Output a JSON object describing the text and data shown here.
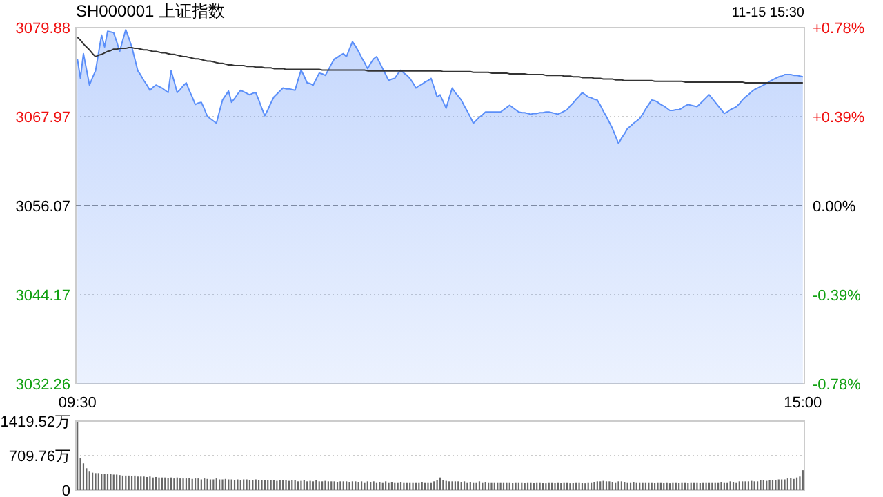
{
  "chart_data": [
    {
      "type": "area",
      "title": "SH000001 上证指数",
      "annotations": [
        "11-15 15:30"
      ],
      "categories": [
        "09:30",
        null,
        null,
        null,
        null,
        null,
        null,
        null,
        null,
        null,
        null,
        null,
        null,
        null,
        null,
        null,
        null,
        null,
        null,
        null,
        null,
        null,
        null,
        null,
        null,
        null,
        null,
        null,
        null,
        null,
        null,
        null,
        null,
        null,
        null,
        null,
        null,
        null,
        null,
        null,
        null,
        null,
        null,
        null,
        null,
        null,
        null,
        null,
        null,
        null,
        null,
        null,
        null,
        null,
        null,
        null,
        null,
        null,
        null,
        null,
        null,
        null,
        null,
        null,
        null,
        null,
        null,
        null,
        null,
        null,
        null,
        null,
        null,
        null,
        null,
        null,
        null,
        null,
        null,
        null,
        null,
        null,
        null,
        null,
        null,
        null,
        null,
        null,
        null,
        null,
        null,
        null,
        null,
        null,
        null,
        null,
        null,
        null,
        null,
        null,
        null,
        null,
        null,
        null,
        null,
        null,
        null,
        null,
        null,
        null,
        null,
        null,
        null,
        null,
        null,
        null,
        null,
        null,
        null,
        null,
        null,
        null,
        null,
        null,
        null,
        null,
        null,
        null,
        null,
        null,
        null,
        null,
        null,
        null,
        null,
        null,
        null,
        null,
        null,
        null,
        null,
        null,
        null,
        null,
        null,
        null,
        null,
        null,
        null,
        null,
        null,
        null,
        null,
        null,
        null,
        null,
        null,
        null,
        null,
        null,
        null,
        null,
        null,
        null,
        null,
        null,
        null,
        null,
        null,
        null,
        null,
        null,
        null,
        null,
        null,
        null,
        null,
        null,
        null,
        null,
        null,
        null,
        null,
        null,
        null,
        null,
        null,
        null,
        null,
        null,
        null,
        null,
        null,
        null,
        null,
        null,
        null,
        null,
        null,
        null,
        null,
        null,
        null,
        null,
        null,
        null,
        null,
        null,
        null,
        null,
        null,
        null,
        null,
        null,
        null,
        null,
        null,
        null,
        null,
        null,
        null,
        null,
        null,
        null,
        null,
        null,
        null,
        null,
        null,
        null,
        null,
        null,
        null,
        null,
        null,
        null,
        null,
        null,
        null,
        null,
        "15:00"
      ],
      "ylim": [
        3032.26,
        3079.88
      ],
      "yticks": [
        3032.26,
        3044.17,
        3056.07,
        3067.97,
        3079.88
      ],
      "y2lim": [
        -0.78,
        0.78
      ],
      "y2ticks": [
        {
          "value": -0.78,
          "label": "-0.78%"
        },
        {
          "value": -0.39,
          "label": "-0.39%"
        },
        {
          "value": 0,
          "label": "0.00%"
        },
        {
          "value": 0.39,
          "label": "+0.39%"
        },
        {
          "value": 0.78,
          "label": "+0.78%"
        }
      ],
      "grid": "y",
      "ref_lines": [
        {
          "axis": "y",
          "value": 3056.07,
          "color": "#888888",
          "line_style": "dashed"
        }
      ],
      "series": [
        {
          "color": "#5b8ff9",
          "values": [
            3075.7,
            3073.1,
            3076.4,
            3074.3,
            3072.2,
            3073.2,
            3074.1,
            3076.5,
            3078.9,
            3077.3,
            3079.4,
            3079.3,
            3079.2,
            3078.0,
            3076.7,
            3078.2,
            3079.6,
            3078.5,
            3077.3,
            3075.7,
            3074.1,
            3073.5,
            3072.8,
            3072.2,
            3071.5,
            3071.9,
            3072.2,
            3072.0,
            3071.8,
            3071.5,
            3071.2,
            3074.1,
            3072.7,
            3071.2,
            3071.6,
            3072.1,
            3072.5,
            3071.5,
            3070.6,
            3069.6,
            3069.8,
            3069.9,
            3069.0,
            3068.0,
            3067.7,
            3067.4,
            3067.1,
            3068.7,
            3070.2,
            3070.8,
            3071.4,
            3069.9,
            3070.4,
            3071.0,
            3071.5,
            3071.3,
            3071.1,
            3070.9,
            3071.1,
            3071.2,
            3070.2,
            3069.1,
            3068.1,
            3068.9,
            3069.8,
            3070.6,
            3071.0,
            3071.4,
            3071.8,
            3071.7,
            3071.7,
            3071.6,
            3071.5,
            3072.9,
            3074.2,
            3073.4,
            3072.5,
            3072.4,
            3072.2,
            3073.0,
            3073.8,
            3073.7,
            3073.5,
            3074.2,
            3075.0,
            3075.7,
            3075.9,
            3076.2,
            3076.4,
            3076.0,
            3077.0,
            3078.0,
            3077.4,
            3076.7,
            3075.9,
            3075.2,
            3074.4,
            3075.1,
            3075.7,
            3076.0,
            3075.2,
            3074.4,
            3073.6,
            3072.8,
            3073.0,
            3073.1,
            3073.7,
            3074.2,
            3073.8,
            3073.5,
            3073.1,
            3072.5,
            3071.8,
            3072.1,
            3072.3,
            3072.6,
            3072.8,
            3073.1,
            3071.9,
            3070.6,
            3070.9,
            3070.0,
            3069.1,
            3070.5,
            3071.8,
            3071.2,
            3070.7,
            3070.2,
            3069.4,
            3068.7,
            3067.9,
            3067.1,
            3067.5,
            3067.9,
            3068.2,
            3068.6,
            3068.6,
            3068.6,
            3068.6,
            3068.6,
            3068.6,
            3068.9,
            3069.2,
            3069.5,
            3069.2,
            3068.9,
            3068.6,
            3068.5,
            3068.5,
            3068.4,
            3068.3,
            3068.4,
            3068.4,
            3068.5,
            3068.5,
            3068.6,
            3068.6,
            3068.5,
            3068.4,
            3068.3,
            3068.5,
            3068.7,
            3068.9,
            3069.4,
            3069.8,
            3070.3,
            3070.7,
            3071.2,
            3070.9,
            3070.6,
            3070.5,
            3070.3,
            3070.2,
            3069.5,
            3068.7,
            3068.0,
            3067.2,
            3066.4,
            3065.4,
            3064.4,
            3065.1,
            3065.7,
            3066.4,
            3066.7,
            3067.1,
            3067.4,
            3067.7,
            3068.3,
            3069.0,
            3069.6,
            3070.2,
            3070.1,
            3069.9,
            3069.6,
            3069.4,
            3069.1,
            3068.8,
            3068.8,
            3068.9,
            3068.9,
            3069.1,
            3069.4,
            3069.6,
            3069.5,
            3069.4,
            3069.3,
            3069.7,
            3070.1,
            3070.5,
            3070.9,
            3070.4,
            3069.9,
            3069.4,
            3068.9,
            3068.4,
            3068.6,
            3068.9,
            3069.1,
            3069.3,
            3069.7,
            3070.2,
            3070.6,
            3070.9,
            3071.3,
            3071.6,
            3071.8,
            3072.0,
            3072.2,
            3072.4,
            3072.7,
            3072.9,
            3073.1,
            3073.3,
            3073.4,
            3073.6,
            3073.6,
            3073.6,
            3073.5,
            3073.5,
            3073.4,
            3073.3
          ]
        },
        {
          "type": "line",
          "color": "#333333",
          "values": [
            3078.6,
            3078.2,
            3077.7,
            3077.3,
            3076.9,
            3076.4,
            3076.0,
            3076.2,
            3076.3,
            3076.5,
            3076.7,
            3076.8,
            3077.0,
            3077.0,
            3077.1,
            3077.1,
            3077.1,
            3077.2,
            3077.2,
            3077.1,
            3077.1,
            3077.0,
            3076.9,
            3076.9,
            3076.8,
            3076.7,
            3076.7,
            3076.6,
            3076.5,
            3076.5,
            3076.4,
            3076.3,
            3076.3,
            3076.2,
            3076.1,
            3076.0,
            3076.0,
            3075.9,
            3075.8,
            3075.7,
            3075.7,
            3075.6,
            3075.5,
            3075.4,
            3075.4,
            3075.3,
            3075.2,
            3075.1,
            3075.1,
            3075.0,
            3074.9,
            3074.9,
            3074.8,
            3074.8,
            3074.8,
            3074.8,
            3074.7,
            3074.7,
            3074.7,
            3074.6,
            3074.6,
            3074.6,
            3074.5,
            3074.5,
            3074.5,
            3074.4,
            3074.4,
            3074.4,
            3074.4,
            3074.3,
            3074.3,
            3074.3,
            3074.3,
            3074.3,
            3074.3,
            3074.3,
            3074.3,
            3074.3,
            3074.3,
            3074.3,
            3074.3,
            3074.2,
            3074.2,
            3074.2,
            3074.2,
            3074.2,
            3074.2,
            3074.2,
            3074.2,
            3074.2,
            3074.2,
            3074.2,
            3074.2,
            3074.2,
            3074.2,
            3074.2,
            3074.1,
            3074.1,
            3074.1,
            3074.1,
            3074.1,
            3074.1,
            3074.1,
            3074.1,
            3074.1,
            3074.1,
            3074.1,
            3074.1,
            3074.1,
            3074.1,
            3074.1,
            3074.1,
            3074.1,
            3074.1,
            3074.1,
            3074.1,
            3074.1,
            3074.1,
            3074.1,
            3074.1,
            3074.1,
            3074.0,
            3074.0,
            3074.0,
            3074.0,
            3074.0,
            3074.0,
            3074.0,
            3074.0,
            3074.0,
            3074.0,
            3073.9,
            3073.9,
            3073.9,
            3073.9,
            3073.9,
            3073.9,
            3073.8,
            3073.8,
            3073.8,
            3073.8,
            3073.8,
            3073.8,
            3073.7,
            3073.7,
            3073.7,
            3073.7,
            3073.7,
            3073.7,
            3073.6,
            3073.6,
            3073.6,
            3073.6,
            3073.6,
            3073.6,
            3073.5,
            3073.5,
            3073.5,
            3073.5,
            3073.5,
            3073.5,
            3073.4,
            3073.4,
            3073.4,
            3073.3,
            3073.3,
            3073.3,
            3073.2,
            3073.2,
            3073.2,
            3073.2,
            3073.1,
            3073.1,
            3073.1,
            3073.0,
            3073.0,
            3073.0,
            3073.0,
            3072.9,
            3072.9,
            3072.9,
            3072.8,
            3072.8,
            3072.8,
            3072.8,
            3072.8,
            3072.8,
            3072.8,
            3072.8,
            3072.8,
            3072.8,
            3072.7,
            3072.7,
            3072.7,
            3072.7,
            3072.7,
            3072.7,
            3072.7,
            3072.7,
            3072.7,
            3072.7,
            3072.6,
            3072.6,
            3072.6,
            3072.6,
            3072.6,
            3072.6,
            3072.6,
            3072.6,
            3072.6,
            3072.6,
            3072.6,
            3072.6,
            3072.6,
            3072.6,
            3072.6,
            3072.6,
            3072.6,
            3072.6,
            3072.6,
            3072.6,
            3072.5,
            3072.5,
            3072.5,
            3072.5,
            3072.5,
            3072.5,
            3072.5,
            3072.5,
            3072.5,
            3072.5,
            3072.5,
            3072.5,
            3072.5,
            3072.5,
            3072.5,
            3072.5,
            3072.5,
            3072.5,
            3072.5,
            3072.5
          ]
        }
      ]
    },
    {
      "type": "bar",
      "color": "#666666",
      "tick_labels": "y",
      "grid": "y",
      "ylim": [
        0,
        1419.52
      ],
      "yticks": [
        0,
        {
          "value": 709.76,
          "label": "709.76万"
        },
        {
          "value": 1419.52,
          "label": "1419.52万"
        }
      ],
      "categories": [
        null,
        null,
        null,
        null,
        null,
        null,
        null,
        null,
        null,
        null,
        null,
        null,
        null,
        null,
        null,
        null,
        null,
        null,
        null,
        null,
        null,
        null,
        null,
        null,
        null,
        null,
        null,
        null,
        null,
        null,
        null,
        null,
        null,
        null,
        null,
        null,
        null,
        null,
        null,
        null,
        null,
        null,
        null,
        null,
        null,
        null,
        null,
        null,
        null,
        null,
        null,
        null,
        null,
        null,
        null,
        null,
        null,
        null,
        null,
        null,
        null,
        null,
        null,
        null,
        null,
        null,
        null,
        null,
        null,
        null,
        null,
        null,
        null,
        null,
        null,
        null,
        null,
        null,
        null,
        null,
        null,
        null,
        null,
        null,
        null,
        null,
        null,
        null,
        null,
        null,
        null,
        null,
        null,
        null,
        null,
        null,
        null,
        null,
        null,
        null,
        null,
        null,
        null,
        null,
        null,
        null,
        null,
        null,
        null,
        null,
        null,
        null,
        null,
        null,
        null,
        null,
        null,
        null,
        null,
        null,
        null,
        null,
        null,
        null,
        null,
        null,
        null,
        null,
        null,
        null,
        null,
        null,
        null,
        null,
        null,
        null,
        null,
        null,
        null,
        null,
        null,
        null,
        null,
        null,
        null,
        null,
        null,
        null,
        null,
        null,
        null,
        null,
        null,
        null,
        null,
        null,
        null,
        null,
        null,
        null,
        null,
        null,
        null,
        null,
        null,
        null,
        null,
        null,
        null,
        null,
        null,
        null,
        null,
        null,
        null,
        null,
        null,
        null,
        null,
        null,
        null,
        null,
        null,
        null,
        null,
        null,
        null,
        null,
        null,
        null,
        null,
        null,
        null,
        null,
        null,
        null,
        null,
        null,
        null,
        null,
        null,
        null,
        null,
        null,
        null,
        null,
        null,
        null,
        null,
        null,
        null,
        null,
        null,
        null,
        null,
        null,
        null,
        null,
        null,
        null,
        null,
        null,
        null,
        null,
        null,
        null,
        null,
        null,
        null,
        null,
        null,
        null,
        null,
        null,
        null,
        null,
        null,
        null,
        null,
        null,
        null
      ],
      "values": [
        1400,
        660,
        550,
        450,
        380,
        360,
        350,
        350,
        340,
        340,
        340,
        330,
        320,
        320,
        310,
        300,
        300,
        300,
        290,
        300,
        280,
        280,
        280,
        270,
        280,
        260,
        270,
        260,
        260,
        260,
        250,
        260,
        240,
        260,
        240,
        240,
        240,
        250,
        230,
        240,
        240,
        220,
        240,
        230,
        220,
        220,
        240,
        220,
        220,
        230,
        220,
        220,
        210,
        220,
        200,
        220,
        220,
        200,
        210,
        220,
        200,
        200,
        210,
        200,
        200,
        200,
        190,
        200,
        200,
        200,
        190,
        200,
        200,
        180,
        190,
        200,
        180,
        190,
        180,
        200,
        180,
        180,
        190,
        180,
        180,
        180,
        170,
        180,
        180,
        180,
        170,
        180,
        180,
        170,
        180,
        160,
        180,
        170,
        180,
        160,
        170,
        160,
        180,
        160,
        170,
        160,
        160,
        170,
        160,
        160,
        160,
        160,
        160,
        160,
        170,
        160,
        160,
        160,
        180,
        200,
        260,
        210,
        190,
        180,
        180,
        180,
        180,
        170,
        180,
        160,
        170,
        160,
        160,
        180,
        160,
        170,
        160,
        160,
        160,
        160,
        160,
        160,
        160,
        160,
        150,
        160,
        160,
        160,
        150,
        160,
        160,
        150,
        160,
        160,
        150,
        140,
        160,
        160,
        150,
        160,
        150,
        160,
        160,
        140,
        150,
        160,
        160,
        150,
        140,
        160,
        160,
        170,
        180,
        180,
        190,
        180,
        180,
        170,
        160,
        180,
        180,
        170,
        160,
        160,
        170,
        160,
        160,
        160,
        160,
        160,
        160,
        150,
        160,
        160,
        150,
        160,
        140,
        160,
        160,
        150,
        160,
        160,
        150,
        160,
        160,
        160,
        150,
        160,
        160,
        160,
        160,
        160,
        160,
        170,
        160,
        160,
        180,
        170,
        160,
        180,
        180,
        180,
        180,
        190,
        180,
        180,
        200,
        200,
        190,
        200,
        210,
        200,
        220,
        220,
        220,
        240,
        250,
        230,
        260,
        280,
        410
      ]
    }
  ]
}
